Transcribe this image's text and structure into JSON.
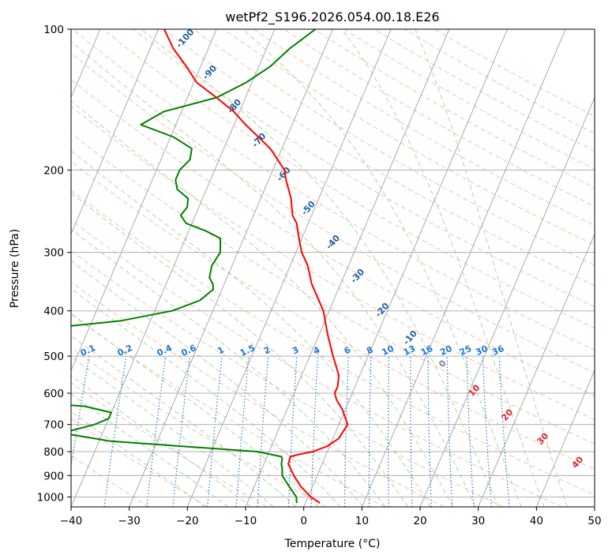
{
  "chart_data": {
    "type": "line",
    "title": "wetPf2_S196.2026.054.00.18.E26",
    "xlabel": "Temperature (°C)",
    "ylabel": "Pressure (hPa)",
    "xlim": [
      -40,
      50
    ],
    "ylim": [
      1050,
      100
    ],
    "y_scale": "log",
    "x_ticks": [
      "−40",
      "−30",
      "−20",
      "−10",
      "0",
      "10",
      "20",
      "30",
      "40",
      "50"
    ],
    "y_ticks": [
      "100",
      "200",
      "300",
      "400",
      "500",
      "600",
      "700",
      "800",
      "900",
      "1000"
    ],
    "y_tick_values": [
      100,
      200,
      300,
      400,
      500,
      600,
      700,
      800,
      900,
      1000
    ],
    "x_tick_values": [
      -40,
      -30,
      -20,
      -10,
      0,
      10,
      20,
      30,
      40,
      50
    ],
    "grid": true,
    "series": [
      {
        "role": "temperature",
        "color": "#ff0000",
        "p": [
          1030,
          1000,
          950,
          900,
          850,
          820,
          810,
          800,
          780,
          750,
          700,
          650,
          620,
          600,
          580,
          550,
          500,
          450,
          400,
          350,
          320,
          300,
          280,
          260,
          250,
          230,
          210,
          200,
          180,
          160,
          150,
          140,
          130,
          120,
          110,
          100
        ],
        "t": [
          2.5,
          0.5,
          -2.0,
          -4.0,
          -5.8,
          -6.0,
          -4.5,
          -2.5,
          -0.5,
          1.0,
          1.5,
          -0.5,
          -2.2,
          -3.0,
          -3.0,
          -3.6,
          -6.0,
          -8.5,
          -11.0,
          -15.0,
          -17.0,
          -19.0,
          -20.5,
          -22.0,
          -23.3,
          -24.8,
          -27.0,
          -28.0,
          -32.0,
          -38.0,
          -41.0,
          -45.0,
          -49.5,
          -52.5,
          -56.0,
          -59.0
        ]
      },
      {
        "role": "dewpoint",
        "color": "#008000",
        "p": [
          1030,
          1000,
          950,
          900,
          870,
          850,
          830,
          820,
          800,
          760,
          730,
          700,
          680,
          660,
          640,
          630,
          620,
          600,
          570,
          550,
          540,
          530,
          520,
          510,
          500,
          490,
          480,
          470,
          460,
          450,
          440,
          420,
          400,
          380,
          360,
          350,
          340,
          320,
          300,
          280,
          270,
          260,
          250,
          240,
          230,
          220,
          210,
          200,
          190,
          180,
          170,
          160,
          150,
          140,
          130,
          120,
          110,
          100
        ],
        "t": [
          -1.5,
          -2.0,
          -4.0,
          -6.0,
          -6.5,
          -7.0,
          -7.2,
          -7.5,
          -12.0,
          -38.0,
          -47.0,
          -42.0,
          -40.0,
          -40.0,
          -45.0,
          -52.0,
          -67.0,
          -85.0,
          -70.0,
          -58.0,
          -52.0,
          -56.0,
          -60.0,
          -67.0,
          -72.0,
          -70.0,
          -66.0,
          -68.0,
          -75.0,
          -70.0,
          -60.0,
          -45.0,
          -37.0,
          -33.0,
          -31.5,
          -32.0,
          -33.0,
          -33.5,
          -33.0,
          -34.0,
          -37.0,
          -41.0,
          -42.5,
          -42.0,
          -42.5,
          -45.0,
          -46.0,
          -46.0,
          -45.0,
          -45.5,
          -49.5,
          -56.0,
          -53.0,
          -45.0,
          -41.0,
          -38.0,
          -36.0,
          -33.0
        ]
      }
    ],
    "dry_adiabat_labels": [
      "-100",
      "-90",
      "-80",
      "-70",
      "-60",
      "-50",
      "-40",
      "-30",
      "-20",
      "-10",
      "0",
      "10",
      "20",
      "30",
      "40"
    ],
    "mixing_ratio_labels": [
      "0.1",
      "0.2",
      "0.4",
      "0.6",
      "1",
      "1.5",
      "2",
      "3",
      "4",
      "6",
      "8",
      "10",
      "13",
      "16",
      "20",
      "25",
      "30",
      "36"
    ],
    "colors": {
      "isotherm": "#aaaaaa",
      "isobar": "#b0b0b0",
      "dry_adiabat": "#f7a98a",
      "moist_adiabat": "#9ccf9c",
      "mixing_ratio": "#1f77d4",
      "label_cold": "#1f5f9f",
      "label_zero": "#808080",
      "label_warm": "#d62728",
      "axes": "#000000"
    }
  }
}
